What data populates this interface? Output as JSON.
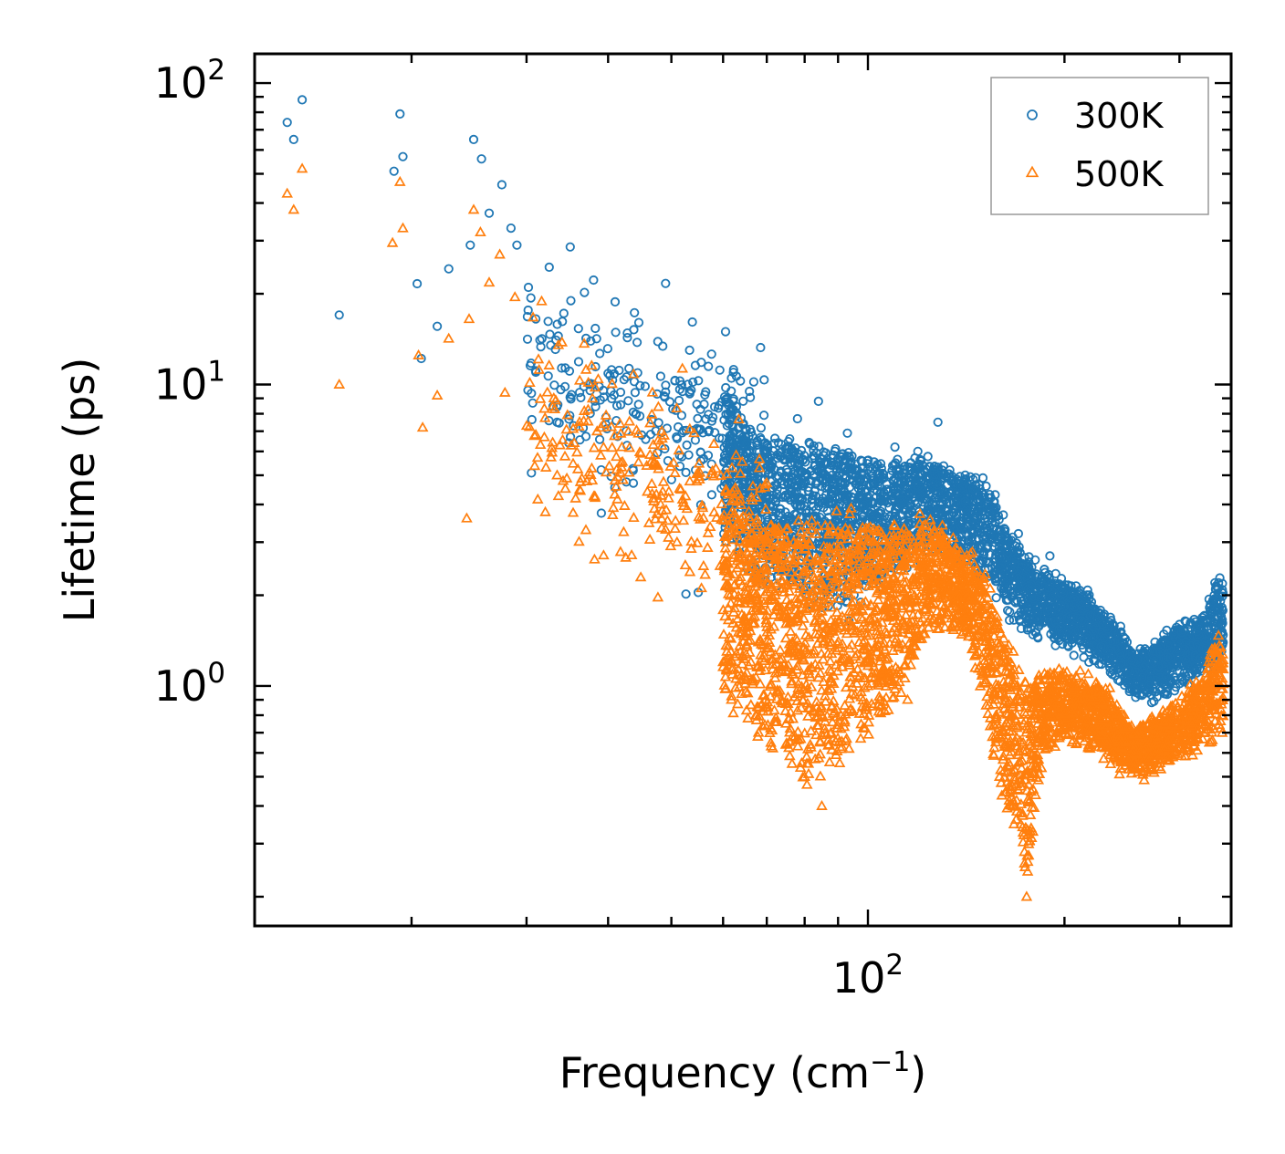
{
  "chart_data": {
    "type": "scatter",
    "title": "",
    "xlabel": "Frequency (cm",
    "xlabel_superscript": "−1",
    "xlabel_suffix": ")",
    "ylabel": "Lifetime (ps)",
    "xscale": "log",
    "yscale": "log",
    "xlim": [
      11.5,
      360
    ],
    "ylim": [
      0.16,
      125
    ],
    "xticks_major": [
      {
        "value": 100,
        "base": "10",
        "exp": "2"
      }
    ],
    "yticks_major": [
      {
        "value": 1,
        "base": "10",
        "exp": "0"
      },
      {
        "value": 10,
        "base": "10",
        "exp": "1"
      },
      {
        "value": 100,
        "base": "10",
        "exp": "2"
      }
    ],
    "legend": {
      "position": "top-right"
    },
    "colors": {
      "s300": "#1f77b4",
      "s500": "#ff7f0e",
      "axis": "#000000",
      "legend_border": "#999999"
    },
    "series": [
      {
        "name": "300K",
        "marker": "circle",
        "color": "#1f77b4",
        "anchors": [
          [
            12.9,
            74
          ],
          [
            13.2,
            65
          ],
          [
            13.6,
            88
          ],
          [
            15.5,
            17
          ],
          [
            18.8,
            51
          ],
          [
            19.2,
            79
          ],
          [
            19.4,
            57
          ],
          [
            20.4,
            21.6
          ],
          [
            20.7,
            12.2
          ],
          [
            21.9,
            15.6
          ],
          [
            22.8,
            24.2
          ],
          [
            24.6,
            29
          ],
          [
            24.9,
            65
          ],
          [
            25.6,
            56
          ],
          [
            26.3,
            37
          ],
          [
            27.5,
            46
          ],
          [
            28.4,
            33
          ],
          [
            30.2,
            21
          ],
          [
            29.0,
            29
          ],
          [
            31.0,
            16.5
          ],
          [
            32.5,
            24.5
          ],
          [
            35.0,
            28.6
          ],
          [
            36.8,
            20.2
          ],
          [
            38.0,
            22.2
          ],
          [
            41.0,
            18.8
          ],
          [
            43.8,
            15.2
          ],
          [
            48.5,
            13.4
          ],
          [
            55.0,
            10.3
          ],
          [
            61.8,
            10.5
          ],
          [
            66.0,
            7.1
          ],
          [
            78.0,
            7.7
          ],
          [
            84.0,
            8.8
          ],
          [
            93.0,
            6.9
          ],
          [
            110.0,
            6.2
          ],
          [
            128.0,
            7.5
          ],
          [
            150.0,
            4.9
          ],
          [
            170.0,
            3.2
          ],
          [
            190.0,
            2.7
          ],
          [
            200.0,
            2.1
          ],
          [
            220.0,
            1.9
          ],
          [
            260.0,
            1.2
          ],
          [
            285.0,
            1.3
          ],
          [
            300.0,
            1.6
          ],
          [
            340.0,
            2.2
          ],
          [
            348.0,
            1.6
          ]
        ]
      },
      {
        "name": "500K",
        "marker": "triangle",
        "color": "#ff7f0e",
        "anchors": [
          [
            12.9,
            43
          ],
          [
            13.2,
            38
          ],
          [
            13.6,
            52
          ],
          [
            15.5,
            10
          ],
          [
            18.7,
            29.5
          ],
          [
            19.2,
            47
          ],
          [
            19.4,
            33
          ],
          [
            20.5,
            12.5
          ],
          [
            20.8,
            7.2
          ],
          [
            21.9,
            9.2
          ],
          [
            22.8,
            14.2
          ],
          [
            24.5,
            16.5
          ],
          [
            24.9,
            38
          ],
          [
            25.5,
            32
          ],
          [
            26.3,
            21.8
          ],
          [
            27.3,
            27
          ],
          [
            27.8,
            9.4
          ],
          [
            28.8,
            19.5
          ],
          [
            30.7,
            16.7
          ],
          [
            24.3,
            3.6
          ],
          [
            34.0,
            13.8
          ],
          [
            37.0,
            11.2
          ],
          [
            39.0,
            7.2
          ],
          [
            42.0,
            6.2
          ],
          [
            47.0,
            4.1
          ],
          [
            51.0,
            3.0
          ],
          [
            56.0,
            2.5
          ],
          [
            60.0,
            1.2
          ],
          [
            68.0,
            0.7
          ],
          [
            80.0,
            0.5
          ],
          [
            85.0,
            0.4
          ],
          [
            100.0,
            1.0
          ],
          [
            115.0,
            0.9
          ],
          [
            127.0,
            2.9
          ],
          [
            140.0,
            2.4
          ],
          [
            160.0,
            1.2
          ],
          [
            175.0,
            0.2
          ],
          [
            190.0,
            0.8
          ],
          [
            230.0,
            0.65
          ],
          [
            270.0,
            0.6
          ],
          [
            320.0,
            0.7
          ],
          [
            340.0,
            1.3
          ],
          [
            348.0,
            0.9
          ]
        ]
      }
    ]
  }
}
